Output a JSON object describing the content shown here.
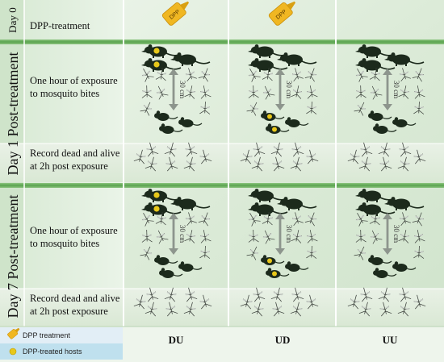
{
  "rows": {
    "day0": {
      "day_label": "Day 0",
      "step": "DPP-treatment"
    },
    "day1": {
      "day_label": "Day 1 Post-treatment",
      "exposure_line1": "One hour of exposure",
      "exposure_line2": "to mosquito bites",
      "record_line1": "Record dead and alive",
      "record_line2": "at 2h post exposure"
    },
    "day7": {
      "day_label": "Day 7 Post-treatment",
      "exposure_line1": "One hour of exposure",
      "exposure_line2": "to mosquito bites",
      "record_line1": "Record dead and alive",
      "record_line2": "at 2h post exposure"
    }
  },
  "distance_label": "30 cm",
  "columns": [
    {
      "id": "DU",
      "label": "DU",
      "rat_treated": true,
      "mouse_treated": false
    },
    {
      "id": "UD",
      "label": "UD",
      "rat_treated": false,
      "mouse_treated": true
    },
    {
      "id": "UU",
      "label": "UU",
      "rat_treated": false,
      "mouse_treated": false
    }
  ],
  "dpp_icon_text": "DPP",
  "legend": {
    "treatment": "DPP treatment",
    "hosts": "DPP-treated hosts"
  },
  "colors": {
    "panel_bg": "#dfeedd",
    "separator": "#5aa34f",
    "animal": "#1c2a1c",
    "treated_spot": "#e8c81a",
    "arrow": "#8d958d",
    "dpp_bottle": "#f0b722"
  }
}
